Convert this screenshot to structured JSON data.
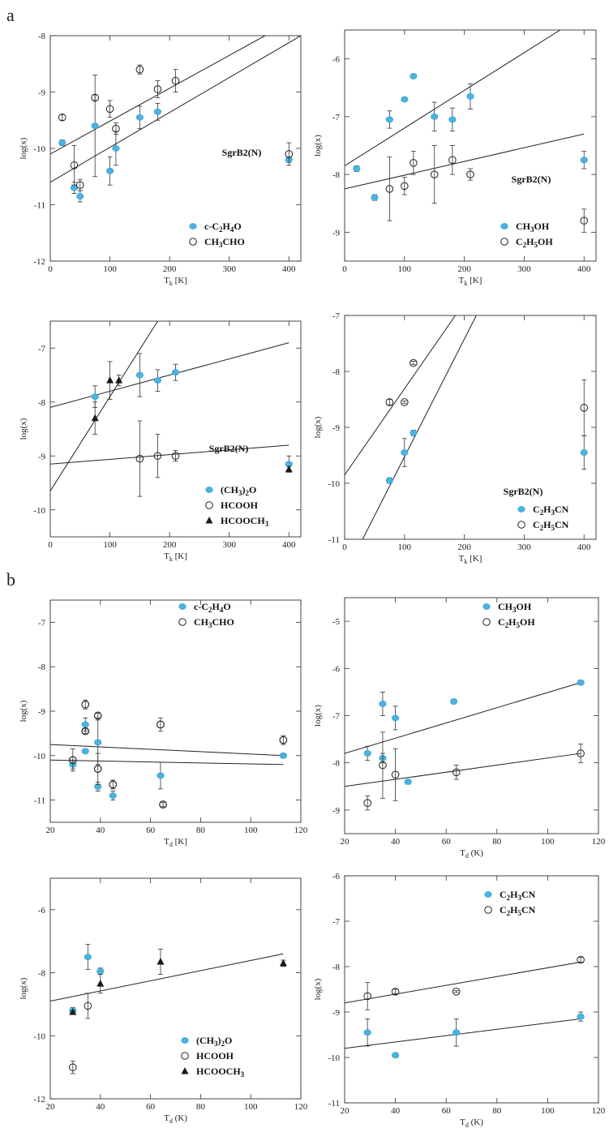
{
  "figure": {
    "panel_a_label": "a",
    "panel_b_label": "b",
    "colors": {
      "filled_marker": "#4ab3df",
      "open_marker": "#222222",
      "triangle": "#1a1a1a",
      "line": "#222222"
    }
  },
  "chart_data": [
    {
      "type": "scatter",
      "panel": "a",
      "xlabel": "T_k [K]",
      "ylabel": "log(x)",
      "xlim": [
        0,
        420
      ],
      "ylim": [
        -12,
        -8
      ],
      "xticks": [
        0,
        100,
        200,
        300,
        400
      ],
      "yticks": [
        -12,
        -11,
        -10,
        -9,
        -8
      ],
      "annotation": "SgrB2(N)",
      "series": [
        {
          "name": "c-C2H4O",
          "marker": "filled",
          "x": [
            20,
            40,
            50,
            75,
            100,
            110,
            150,
            180,
            400
          ],
          "y": [
            -9.9,
            -10.7,
            -10.85,
            -9.6,
            -10.4,
            -10.0,
            -9.45,
            -9.35,
            -10.2
          ],
          "yerr": [
            0.05,
            0.1,
            0.1,
            0.9,
            0.25,
            0.3,
            0.2,
            0.15,
            0.05
          ]
        },
        {
          "name": "CH3CHO",
          "marker": "open",
          "x": [
            20,
            40,
            50,
            75,
            100,
            110,
            150,
            180,
            210,
            400
          ],
          "y": [
            -9.45,
            -10.3,
            -10.65,
            -9.1,
            -9.3,
            -9.65,
            -8.6,
            -8.95,
            -8.8,
            -10.1
          ],
          "yerr": [
            0.05,
            0.35,
            0.1,
            0.05,
            0.15,
            0.1,
            0.08,
            0.15,
            0.2,
            0.2
          ]
        }
      ],
      "fit_lines": [
        {
          "x": [
            0,
            360
          ],
          "y": [
            -10.1,
            -8.0
          ]
        },
        {
          "x": [
            0,
            420
          ],
          "y": [
            -10.6,
            -8.0
          ]
        }
      ]
    },
    {
      "type": "scatter",
      "panel": "a",
      "xlabel": "T_k [K]",
      "ylabel": "log(x)",
      "xlim": [
        0,
        420
      ],
      "ylim": [
        -9.5,
        -5.5
      ],
      "xticks": [
        0,
        100,
        200,
        300,
        400
      ],
      "yticks": [
        -9,
        -8,
        -7,
        -6
      ],
      "annotation": "SgrB2(N)",
      "series": [
        {
          "name": "CH3OH",
          "marker": "filled",
          "x": [
            20,
            50,
            75,
            100,
            115,
            150,
            180,
            210,
            400
          ],
          "y": [
            -7.9,
            -8.4,
            -7.05,
            -6.7,
            -6.3,
            -7.0,
            -7.05,
            -6.65,
            -7.75
          ],
          "yerr": [
            0.05,
            0.05,
            0.15,
            0.02,
            0.03,
            0.25,
            0.2,
            0.22,
            0.15
          ]
        },
        {
          "name": "C2H5OH",
          "marker": "open",
          "x": [
            75,
            100,
            115,
            150,
            180,
            210,
            400
          ],
          "y": [
            -8.25,
            -8.2,
            -7.8,
            -8.0,
            -7.75,
            -8.0,
            -8.8
          ],
          "yerr": [
            0.55,
            0.15,
            0.2,
            0.5,
            0.25,
            0.1,
            0.2
          ]
        }
      ],
      "fit_lines": [
        {
          "x": [
            0,
            360
          ],
          "y": [
            -7.85,
            -5.5
          ]
        },
        {
          "x": [
            0,
            400
          ],
          "y": [
            -8.25,
            -7.3
          ]
        }
      ]
    },
    {
      "type": "scatter",
      "panel": "a",
      "xlabel": "T_k [K]",
      "ylabel": "log(x)",
      "xlim": [
        0,
        420
      ],
      "ylim": [
        -10.5,
        -6.5
      ],
      "xticks": [
        0,
        100,
        200,
        300,
        400
      ],
      "yticks": [
        -10,
        -9,
        -8,
        -7
      ],
      "annotation": "SgrB2(N)",
      "series": [
        {
          "name": "(CH3)2O",
          "marker": "filled",
          "x": [
            75,
            150,
            180,
            210,
            400
          ],
          "y": [
            -7.9,
            -7.5,
            -7.6,
            -7.45,
            -9.15
          ],
          "yerr": [
            0.2,
            0.4,
            0.2,
            0.15,
            0.15
          ]
        },
        {
          "name": "HCOOH",
          "marker": "open",
          "x": [
            150,
            180,
            210
          ],
          "y": [
            -9.05,
            -9.0,
            -9.0
          ],
          "yerr": [
            0.7,
            0.4,
            0.1
          ]
        },
        {
          "name": "HCOOCH3",
          "marker": "triangle",
          "x": [
            75,
            100,
            115,
            400
          ],
          "y": [
            -8.3,
            -7.6,
            -7.6,
            -9.25
          ],
          "yerr": [
            0.3,
            0.35,
            0.1,
            0.05
          ]
        }
      ],
      "fit_lines": [
        {
          "x": [
            0,
            180
          ],
          "y": [
            -9.65,
            -6.5
          ]
        },
        {
          "x": [
            0,
            400
          ],
          "y": [
            -8.1,
            -6.9
          ]
        },
        {
          "x": [
            0,
            400
          ],
          "y": [
            -9.15,
            -8.8
          ]
        }
      ]
    },
    {
      "type": "scatter",
      "panel": "a",
      "xlabel": "T_k [K]",
      "ylabel": "log(x)",
      "xlim": [
        0,
        420
      ],
      "ylim": [
        -11,
        -7
      ],
      "xticks": [
        0,
        100,
        200,
        300,
        400
      ],
      "yticks": [
        -11,
        -10,
        -9,
        -8,
        -7
      ],
      "annotation": "SgrB2(N)",
      "series": [
        {
          "name": "C2H3CN",
          "marker": "filled",
          "x": [
            75,
            100,
            115,
            400
          ],
          "y": [
            -9.95,
            -9.45,
            -9.1,
            -9.45
          ],
          "yerr": [
            0.05,
            0.25,
            0.05,
            0.3
          ]
        },
        {
          "name": "C2H5CN",
          "marker": "open",
          "x": [
            75,
            100,
            115,
            400
          ],
          "y": [
            -8.55,
            -8.55,
            -7.85,
            -8.65
          ],
          "yerr": [
            0.05,
            0.02,
            0.03,
            0.5
          ]
        }
      ],
      "fit_lines": [
        {
          "x": [
            0,
            185
          ],
          "y": [
            -9.85,
            -7.0
          ]
        },
        {
          "x": [
            30,
            220
          ],
          "y": [
            -11.0,
            -7.0
          ]
        }
      ]
    },
    {
      "type": "scatter",
      "panel": "b",
      "xlabel": "T_d [K]",
      "ylabel": "log(x)",
      "xlim": [
        20,
        120
      ],
      "ylim": [
        -11.5,
        -6.5
      ],
      "xticks": [
        20,
        40,
        60,
        80,
        100,
        120
      ],
      "yticks": [
        -11,
        -10,
        -9,
        -8,
        -7
      ],
      "series": [
        {
          "name": "c-C2H4O",
          "marker": "filled",
          "x": [
            29,
            34,
            34,
            39,
            39,
            45,
            64,
            113
          ],
          "y": [
            -10.2,
            -9.9,
            -9.3,
            -9.7,
            -10.7,
            -10.9,
            -10.45,
            -10.0
          ],
          "yerr": [
            0.1,
            0.03,
            0.15,
            0.5,
            0.1,
            0.1,
            0.3,
            0.05
          ]
        },
        {
          "name": "CH3CHO",
          "marker": "open",
          "x": [
            29,
            34,
            34,
            39,
            39,
            45,
            64,
            65,
            113
          ],
          "y": [
            -10.1,
            -8.85,
            -9.45,
            -9.1,
            -10.3,
            -10.65,
            -9.3,
            -11.1,
            -9.65
          ]
        },
        {
          "name": "CH3CHO",
          "marker": "open",
          "x": [
            29,
            34,
            34,
            39,
            39,
            45,
            64,
            65,
            113
          ],
          "y": [
            -10.1,
            -8.85,
            -9.45,
            -9.1,
            -10.3,
            -10.65,
            -9.3,
            -11.1,
            -9.65
          ],
          "yerr": [
            0.25,
            0.1,
            0.05,
            0.05,
            0.35,
            0.1,
            0.15,
            0.05,
            0.1
          ]
        }
      ],
      "fit_lines": [
        {
          "x": [
            20,
            113
          ],
          "y": [
            -10.1,
            -10.2
          ]
        },
        {
          "x": [
            20,
            113
          ],
          "y": [
            -9.75,
            -10.0
          ]
        }
      ]
    },
    {
      "type": "scatter",
      "panel": "b",
      "xlabel": "T_d(K)",
      "ylabel": "log(x)",
      "xlim": [
        20,
        120
      ],
      "ylim": [
        -9.5,
        -4.5
      ],
      "xticks": [
        20,
        40,
        60,
        80,
        100,
        120
      ],
      "yticks": [
        -9,
        -8,
        -7,
        -6,
        -5
      ],
      "series": [
        {
          "name": "CH3OH",
          "marker": "filled",
          "x": [
            29,
            35,
            35,
            40,
            45,
            63,
            113
          ],
          "y": [
            -7.8,
            -6.75,
            -7.9,
            -7.05,
            -8.4,
            -6.7,
            -6.3
          ],
          "yerr": [
            0.15,
            0.25,
            0.1,
            0.25,
            0.05,
            0.05,
            0.05
          ]
        },
        {
          "name": "C2H5OH",
          "marker": "open",
          "x": [
            29,
            35,
            40,
            64,
            113
          ],
          "y": [
            -8.85,
            -8.05,
            -8.25,
            -8.2,
            -7.8
          ],
          "yerr": [
            0.15,
            0.7,
            0.55,
            0.15,
            0.2
          ]
        }
      ],
      "fit_lines": [
        {
          "x": [
            20,
            113
          ],
          "y": [
            -7.8,
            -6.3
          ]
        },
        {
          "x": [
            20,
            113
          ],
          "y": [
            -8.5,
            -7.8
          ]
        }
      ]
    },
    {
      "type": "scatter",
      "panel": "b",
      "xlabel": "T_d(K)",
      "ylabel": "log(x)",
      "xlim": [
        20,
        120
      ],
      "ylim": [
        -12,
        -5
      ],
      "xticks": [
        20,
        40,
        60,
        80,
        100,
        120
      ],
      "yticks": [
        -12,
        -10,
        -8,
        -6
      ],
      "series": [
        {
          "name": "(CH3)2O",
          "marker": "filled",
          "x": [
            29,
            35,
            40
          ],
          "y": [
            -9.2,
            -7.5,
            -7.95
          ],
          "yerr": [
            0.1,
            0.4,
            0.1
          ]
        },
        {
          "name": "HCOOH",
          "marker": "open",
          "x": [
            29,
            35
          ],
          "y": [
            -11.0,
            -9.05
          ],
          "yerr": [
            0.2,
            0.4
          ]
        },
        {
          "name": "HCOOCH3",
          "marker": "triangle",
          "x": [
            29,
            40,
            64,
            113
          ],
          "y": [
            -9.25,
            -8.35,
            -7.65,
            -7.7
          ],
          "yerr": [
            0.05,
            0.3,
            0.4,
            0.1
          ]
        }
      ],
      "fit_lines": [
        {
          "x": [
            20,
            113
          ],
          "y": [
            -8.9,
            -7.4
          ]
        }
      ]
    },
    {
      "type": "scatter",
      "panel": "b",
      "xlabel": "T_d(K)",
      "ylabel": "log(x)",
      "xlim": [
        20,
        120
      ],
      "ylim": [
        -11,
        -6
      ],
      "xticks": [
        20,
        40,
        60,
        80,
        100,
        120
      ],
      "yticks": [
        -11,
        -10,
        -9,
        -8,
        -7,
        -6
      ],
      "series": [
        {
          "name": "C2H3CN",
          "marker": "filled",
          "x": [
            29,
            40,
            64,
            113
          ],
          "y": [
            -9.45,
            -9.95,
            -9.45,
            -9.1
          ],
          "yerr": [
            0.3,
            0.05,
            0.3,
            0.1
          ]
        },
        {
          "name": "C2H5CN",
          "marker": "open",
          "x": [
            29,
            40,
            64,
            113
          ],
          "y": [
            -8.65,
            -8.55,
            -8.55,
            -7.85
          ],
          "yerr": [
            0.3,
            0.05,
            0.02,
            0.05
          ]
        }
      ],
      "fit_lines": [
        {
          "x": [
            20,
            113
          ],
          "y": [
            -9.8,
            -9.15
          ]
        },
        {
          "x": [
            20,
            113
          ],
          "y": [
            -8.8,
            -7.9
          ]
        }
      ]
    }
  ]
}
